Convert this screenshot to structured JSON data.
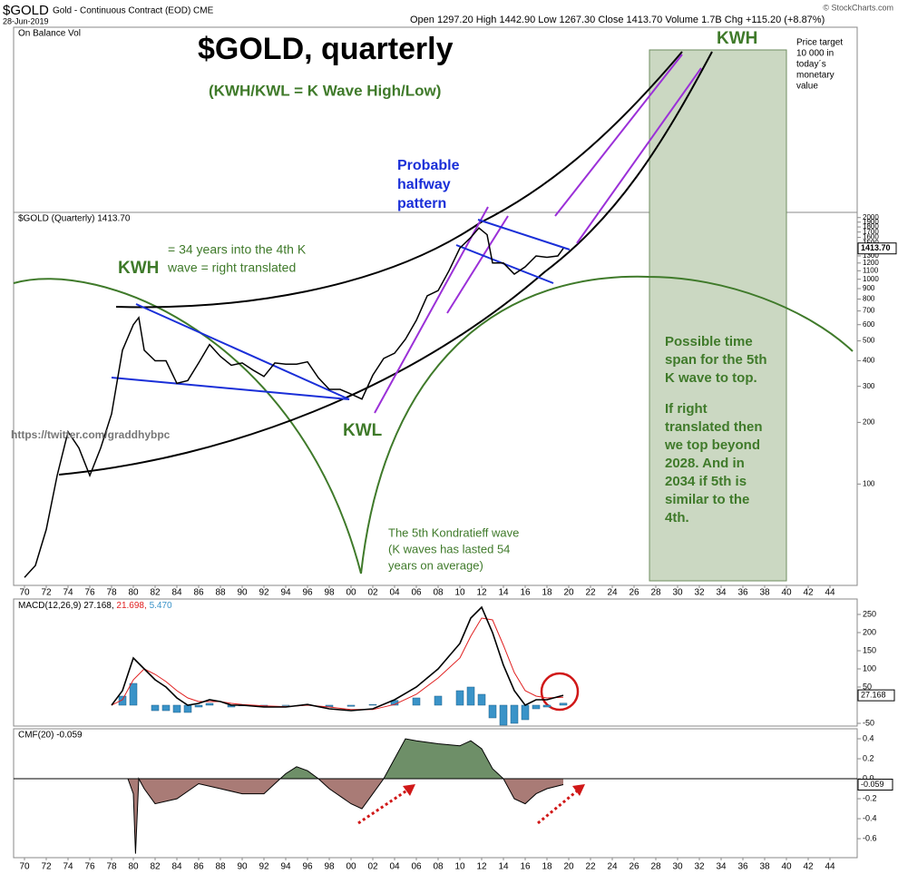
{
  "header": {
    "symbol": "$GOLD",
    "description": "Gold - Continuous Contract (EOD) CME",
    "date": "28-Jun-2019",
    "quote": "Open 1297.20 High 1442.90 Low 1267.30 Close 1413.70 Volume 1.7B Chg +115.20 (+8.87%)",
    "source": "© StockCharts.com"
  },
  "chart_data": [
    {
      "type": "line",
      "title": "$GOLD, quarterly",
      "subtitle": "(KWH/KWL = K Wave High/Low)",
      "overlay_label": "On Balance Vol",
      "legend": "$GOLD (Quarterly) 1413.70",
      "last_label": "1413.70",
      "color": "#000000",
      "log": true,
      "x": [
        1970,
        1971,
        1972,
        1973,
        1974,
        1975,
        1976,
        1977,
        1978,
        1979,
        1980,
        1980.5,
        1981,
        1982,
        1983,
        1984,
        1985,
        1986,
        1987,
        1988,
        1989,
        1990,
        1991,
        1992,
        1993,
        1994,
        1995,
        1996,
        1997,
        1998,
        1999,
        2000,
        2001,
        2002,
        2003,
        2004,
        2005,
        2006,
        2007,
        2008,
        2009,
        2010,
        2011,
        2011.75,
        2012.5,
        2013,
        2014,
        2015,
        2016,
        2017,
        2018,
        2019,
        2019.5
      ],
      "values": [
        35,
        40,
        60,
        110,
        180,
        150,
        110,
        150,
        220,
        450,
        600,
        650,
        450,
        400,
        400,
        310,
        320,
        390,
        480,
        420,
        380,
        390,
        360,
        335,
        390,
        385,
        385,
        395,
        330,
        290,
        290,
        275,
        260,
        340,
        410,
        435,
        510,
        630,
        830,
        880,
        1100,
        1420,
        1600,
        1780,
        1650,
        1200,
        1200,
        1060,
        1150,
        1300,
        1280,
        1300,
        1413.7
      ],
      "xlim": [
        1969,
        2046.5
      ],
      "xticks": [
        {
          "value": 1970,
          "label": "70"
        },
        {
          "value": 1972,
          "label": "72"
        },
        {
          "value": 1974,
          "label": "74"
        },
        {
          "value": 1976,
          "label": "76"
        },
        {
          "value": 1978,
          "label": "78"
        },
        {
          "value": 1980,
          "label": "80"
        },
        {
          "value": 1982,
          "label": "82"
        },
        {
          "value": 1984,
          "label": "84"
        },
        {
          "value": 1986,
          "label": "86"
        },
        {
          "value": 1988,
          "label": "88"
        },
        {
          "value": 1990,
          "label": "90"
        },
        {
          "value": 1992,
          "label": "92"
        },
        {
          "value": 1994,
          "label": "94"
        },
        {
          "value": 1996,
          "label": "96"
        },
        {
          "value": 1998,
          "label": "98"
        },
        {
          "value": 2000,
          "label": "00"
        },
        {
          "value": 2002,
          "label": "02"
        },
        {
          "value": 2004,
          "label": "04"
        },
        {
          "value": 2006,
          "label": "06"
        },
        {
          "value": 2008,
          "label": "08"
        },
        {
          "value": 2010,
          "label": "10"
        },
        {
          "value": 2012,
          "label": "12"
        },
        {
          "value": 2014,
          "label": "14"
        },
        {
          "value": 2016,
          "label": "16"
        },
        {
          "value": 2018,
          "label": "18"
        },
        {
          "value": 2020,
          "label": "20"
        },
        {
          "value": 2022,
          "label": "22"
        },
        {
          "value": 2024,
          "label": "24"
        },
        {
          "value": 2026,
          "label": "26"
        },
        {
          "value": 2028,
          "label": "28"
        },
        {
          "value": 2030,
          "label": "30"
        },
        {
          "value": 2032,
          "label": "32"
        },
        {
          "value": 2034,
          "label": "34"
        },
        {
          "value": 2036,
          "label": "36"
        },
        {
          "value": 2038,
          "label": "38"
        },
        {
          "value": 2040,
          "label": "40"
        },
        {
          "value": 2042,
          "label": "42"
        },
        {
          "value": 2044,
          "label": "44"
        }
      ],
      "ylim": [
        32,
        17000
      ],
      "yticks": [
        100,
        200,
        300,
        400,
        500,
        600,
        700,
        800,
        900,
        1000,
        1100,
        1200,
        1300,
        1400,
        1500,
        1600,
        1700,
        1800,
        1900,
        2000
      ]
    },
    {
      "type": "macd",
      "title": "MACD(12,26,9)",
      "x": [
        1978,
        1979,
        1980,
        1981,
        1982,
        1983,
        1984,
        1985,
        1986,
        1987,
        1988,
        1989,
        1990,
        1992,
        1994,
        1996,
        1998,
        2000,
        2002,
        2004,
        2006,
        2008,
        2010,
        2011,
        2012,
        2013,
        2014,
        2015,
        2016,
        2017,
        2018,
        2019.5
      ],
      "series": [
        {
          "color": "#000000",
          "label": "27.168,",
          "values": [
            0,
            40,
            130,
            100,
            70,
            50,
            20,
            0,
            5,
            15,
            10,
            0,
            0,
            -5,
            -5,
            2,
            -10,
            -15,
            -10,
            15,
            50,
            100,
            170,
            240,
            270,
            200,
            110,
            40,
            0,
            15,
            15,
            27.168
          ]
        },
        {
          "color": "#e02020",
          "label": "21.698,",
          "values": [
            0,
            15,
            70,
            100,
            85,
            65,
            40,
            20,
            10,
            10,
            10,
            5,
            2,
            -2,
            -4,
            0,
            -5,
            -12,
            -12,
            2,
            30,
            75,
            130,
            190,
            240,
            235,
            165,
            90,
            40,
            25,
            20,
            21.698
          ]
        },
        {
          "color": "#3a93c8",
          "label": "5.470",
          "values": [
            0,
            25,
            60,
            0,
            -15,
            -15,
            -20,
            -20,
            -5,
            5,
            0,
            -5,
            -2,
            -3,
            -1,
            2,
            -5,
            -3,
            2,
            13,
            20,
            25,
            40,
            50,
            30,
            -35,
            -55,
            -50,
            -40,
            -10,
            -5,
            5.47
          ]
        }
      ],
      "ylim": [
        -57.5,
        292.5
      ],
      "yticks": [
        -50,
        50,
        100,
        150,
        200,
        250
      ]
    },
    {
      "type": "area",
      "title": "CMF(20) -0.059",
      "colors": [
        "#6e8f68",
        "#a97b76"
      ],
      "x": [
        1979.5,
        1980,
        1980.2,
        1980.5,
        1981,
        1982,
        1984,
        1986,
        1988,
        1990,
        1992,
        1993,
        1994,
        1995,
        1996,
        1997,
        1998,
        2000,
        2001,
        2002,
        2003,
        2004,
        2005,
        2006,
        2008,
        2010,
        2011,
        2012,
        2013,
        2014,
        2015,
        2016,
        2017,
        2018,
        2019.5
      ],
      "values": [
        0,
        -0.15,
        -0.75,
        0,
        -0.1,
        -0.25,
        -0.2,
        -0.05,
        -0.1,
        -0.15,
        -0.15,
        -0.05,
        0.05,
        0.12,
        0.08,
        0,
        -0.1,
        -0.25,
        -0.3,
        -0.15,
        0,
        0.2,
        0.4,
        0.38,
        0.35,
        0.33,
        0.38,
        0.3,
        0.1,
        0,
        -0.2,
        -0.25,
        -0.15,
        -0.1,
        -0.059
      ],
      "ylim": [
        -0.79,
        0.5
      ],
      "yticks": [
        0.4,
        0.2,
        {
          "value": 0,
          "label": "0.0"
        },
        -0.2,
        -0.4,
        -0.6
      ]
    }
  ],
  "annotations": {
    "kwh_left": "KWH",
    "kwh_top": "KWH",
    "kwl": "KWL",
    "halfway": [
      "Probable",
      "halfway",
      "pattern"
    ],
    "translated": [
      "= 34 years into the 4th K",
      "wave = right translated"
    ],
    "twitter": "https://twitter.com/graddhybpc",
    "kondratieff": [
      "The 5th Kondratieff wave",
      "(K waves has lasted 54",
      "years on average)"
    ],
    "timespan": [
      "Possible time",
      "span for the 5th",
      "K wave to top."
    ],
    "right_translated": [
      "If right",
      "translated then",
      "we top beyond",
      "2028. And in",
      "2034 if 5th is",
      "similar to the",
      "4th."
    ],
    "target": [
      "Price target",
      "10 000 in",
      "today´s",
      "monetary",
      "value"
    ]
  }
}
